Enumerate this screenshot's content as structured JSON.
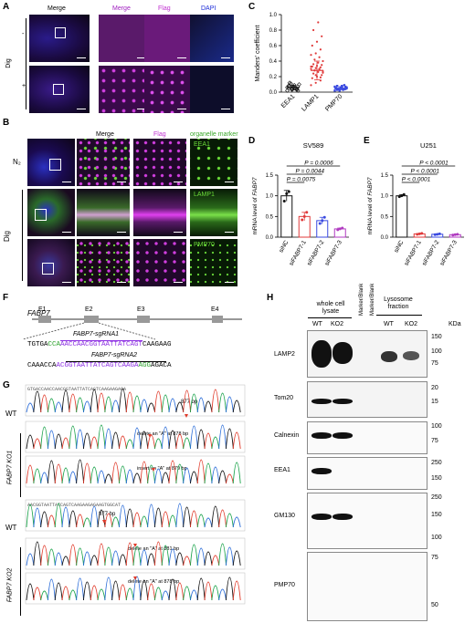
{
  "panels": {
    "A": "A",
    "B": "B",
    "C": "C",
    "D": "D",
    "E": "E",
    "F": "F",
    "G": "G",
    "H": "H"
  },
  "panelA": {
    "headers": [
      "Merge",
      "Merge",
      "Flag",
      "DAPI"
    ],
    "row_signs": [
      "-",
      "+"
    ],
    "side_label": "Dig",
    "colors": {
      "merge": "#7a1a8a",
      "flag": "#c02fd0",
      "dapi": "#1b2bd8",
      "background": "#1a0a24"
    }
  },
  "panelB": {
    "headers": [
      "Merge",
      "Flag",
      "organelle marker"
    ],
    "rows": [
      {
        "marker": "EEA1",
        "left": "N₂"
      },
      {
        "marker": "LAMP1",
        "left": ""
      },
      {
        "marker": "PMP70",
        "left": ""
      }
    ],
    "side_label": "Dig",
    "colors": {
      "green": "#6bdc3a",
      "magenta": "#d13ee0"
    }
  },
  "panelC": {
    "ylabel": "Manders' coefficient",
    "yticks": [
      "0.0",
      "0.2",
      "0.4",
      "0.6",
      "0.8",
      "1.0"
    ],
    "categories": [
      "EEA1",
      "LAMP1",
      "PMP70"
    ]
  },
  "panelD": {
    "title": "SV589",
    "ylabel_prefix": "mRNA level of ",
    "ylabel_gene": "FABP7",
    "yticks": [
      "0.0",
      "0.5",
      "1.0",
      "1.5"
    ],
    "categories": [
      "siNC",
      "siFABP7-1",
      "siFABP7-2",
      "siFABP7-3"
    ],
    "pvalues": [
      "P = 0.0006",
      "P = 0.0044",
      "P = 0.0075"
    ]
  },
  "panelE": {
    "title": "U251",
    "ylabel_prefix": "mRNA level of ",
    "ylabel_gene": "FABP7",
    "yticks": [
      "0.0",
      "0.5",
      "1.0",
      "1.5"
    ],
    "categories": [
      "siNC",
      "siFABP7-1",
      "siFABP7-2",
      "siFABP7-3"
    ],
    "pvalues": [
      "P < 0.0001",
      "P < 0.0001",
      "P < 0.0001"
    ]
  },
  "panelF": {
    "gene": "FABP7",
    "exons": [
      "E1",
      "E2",
      "E3",
      "E4"
    ],
    "sgRNA1": "FABP7-sgRNA1",
    "sgRNA2": "FABP7-sgRNA2",
    "seq1": {
      "pre": "TGTGA",
      "pam": "CCA",
      "target": "AACCAACGGTAATTATCAGT",
      "post": "CAAGAAG"
    },
    "seq2": {
      "pre": "CAAACCA",
      "target": "ACGGTAATTATCAGTCAAGA",
      "pam": "AGG",
      "post": "AGACA"
    },
    "colors": {
      "pam": "#2aa12a",
      "target": "#8a2be2"
    }
  },
  "panelG": {
    "top_seq": "GTGACCAACCAACGGTAATTATCAGTCAAGAAGAGA",
    "bottom_seq": "AACGGTAATTATCAGTCAAGAAGAGAAGTGGCAT",
    "labels": {
      "wt1": "WT",
      "ko1": "FABP7 KO1",
      "wt2": "WT",
      "ko2": "FABP7 KO2",
      "bp1": "877 bp",
      "del1": "delete an \"A\" at 878 bp",
      "ins1": "insert an \"A\" at 879 bp",
      "bp2": "877 bp",
      "del2": "delete an \"A\" at 881 bp",
      "del3": "delete an \"A\" at 878 bp"
    },
    "trace_colors": [
      "#2a6cd8",
      "#1aa24a",
      "#e03a2a",
      "#111111"
    ]
  },
  "panelH": {
    "group1": "whole cell lysate",
    "marker_blank": "Marker/Blank",
    "group2": "Lysosome fraction",
    "lanes": [
      "WT",
      "KO2",
      "WT",
      "KO2"
    ],
    "unit": "KDa",
    "blots": [
      {
        "name": "LAMP2",
        "ticks": [
          "150",
          "100",
          "75"
        ]
      },
      {
        "name": "Tom20",
        "ticks": [
          "20",
          "15"
        ]
      },
      {
        "name": "Calnexin",
        "ticks": [
          "100",
          "75"
        ]
      },
      {
        "name": "EEA1",
        "ticks": [
          "250",
          "150"
        ]
      },
      {
        "name": "GM130",
        "ticks": [
          "250",
          "150",
          "100"
        ]
      },
      {
        "name": "PMP70",
        "ticks": [
          "75",
          "50"
        ]
      }
    ]
  },
  "chart_data": [
    {
      "type": "scatter",
      "ylabel": "Manders' coefficient",
      "ylim": [
        0,
        1.0
      ],
      "categories": [
        "EEA1",
        "LAMP1",
        "PMP70"
      ],
      "series": [
        {
          "name": "EEA1",
          "values": [
            0.02,
            0.03,
            0.04,
            0.05,
            0.06,
            0.07,
            0.08,
            0.09,
            0.1,
            0.11,
            0.05,
            0.06,
            0.04,
            0.03,
            0.08,
            0.07,
            0.02,
            0.12
          ]
        },
        {
          "name": "LAMP1",
          "values": [
            0.09,
            0.12,
            0.15,
            0.18,
            0.2,
            0.22,
            0.24,
            0.26,
            0.27,
            0.28,
            0.29,
            0.3,
            0.31,
            0.32,
            0.33,
            0.34,
            0.35,
            0.36,
            0.38,
            0.4,
            0.42,
            0.45,
            0.48,
            0.5,
            0.55,
            0.6,
            0.65,
            0.72,
            0.8,
            0.9,
            0.25,
            0.28,
            0.3,
            0.33,
            0.22,
            0.19
          ]
        },
        {
          "name": "PMP70",
          "values": [
            0.02,
            0.03,
            0.04,
            0.05,
            0.06,
            0.07,
            0.08,
            0.05,
            0.06,
            0.04,
            0.03,
            0.07,
            0.02,
            0.09,
            0.05,
            0.06,
            0.04,
            0.03,
            0.08,
            0.05
          ]
        }
      ],
      "means": [
        0.06,
        0.28,
        0.05
      ],
      "sd": [
        0.03,
        0.12,
        0.02
      ]
    },
    {
      "type": "bar",
      "title": "SV589",
      "ylabel": "mRNA level of FABP7",
      "ylim": [
        0,
        1.5
      ],
      "categories": [
        "siNC",
        "siFABP7-1",
        "siFABP7-2",
        "siFABP7-3"
      ],
      "values": [
        1.0,
        0.5,
        0.4,
        0.2
      ],
      "errors": [
        0.13,
        0.1,
        0.08,
        0.02
      ],
      "points": [
        [
          0.87,
          1.05,
          1.1
        ],
        [
          0.42,
          0.5,
          0.6
        ],
        [
          0.33,
          0.4,
          0.48
        ],
        [
          0.18,
          0.2,
          0.22
        ]
      ],
      "bar_colors": [
        "#111111",
        "#e03a3a",
        "#3a4ae0",
        "#b03ac0"
      ]
    },
    {
      "type": "bar",
      "title": "U251",
      "ylabel": "mRNA level of FABP7",
      "ylim": [
        0,
        1.5
      ],
      "categories": [
        "siNC",
        "siFABP7-1",
        "siFABP7-2",
        "siFABP7-3"
      ],
      "values": [
        1.0,
        0.08,
        0.07,
        0.06
      ],
      "errors": [
        0.03,
        0.01,
        0.01,
        0.01
      ],
      "points": [
        [
          0.98,
          1.0,
          1.03
        ],
        [
          0.07,
          0.08,
          0.09
        ],
        [
          0.06,
          0.07,
          0.08
        ],
        [
          0.05,
          0.06,
          0.07
        ]
      ],
      "bar_colors": [
        "#111111",
        "#e03a3a",
        "#3a4ae0",
        "#b03ac0"
      ]
    }
  ]
}
